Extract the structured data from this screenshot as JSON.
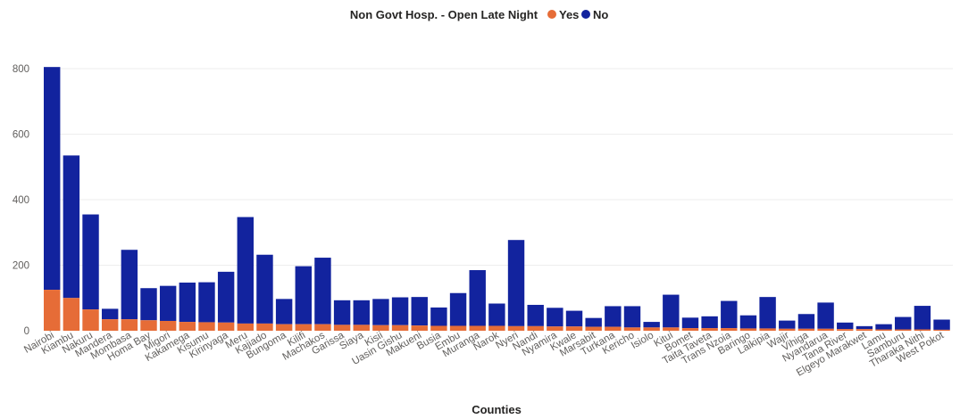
{
  "chart_data": {
    "type": "bar",
    "stacked": true,
    "title": "Non Govt Hosp. - Open Late Night",
    "xlabel": "Counties",
    "ylabel": "",
    "ylim": [
      0,
      800
    ],
    "yticks": [
      0,
      200,
      400,
      600,
      800
    ],
    "grid": true,
    "legend": {
      "placement": "top",
      "entries": [
        "Yes",
        "No"
      ]
    },
    "colors": {
      "Yes": "#e66c37",
      "No": "#12239e"
    },
    "categories": [
      "Nairobi",
      "Kiambu",
      "Nakuru",
      "Mandera",
      "Mombasa",
      "Homa Bay",
      "Migori",
      "Kakamega",
      "Kisumu",
      "Kirinyaga",
      "Meru",
      "Kajiado",
      "Bungoma",
      "Kilifi",
      "Machakos",
      "Garissa",
      "Siaya",
      "Kisii",
      "Uasin Gishu",
      "Makueni",
      "Busia",
      "Embu",
      "Muranga",
      "Narok",
      "Nyeri",
      "Nandi",
      "Nyamira",
      "Kwale",
      "Marsabit",
      "Turkana",
      "Kericho",
      "Isiolo",
      "Kitui",
      "Bomet",
      "Taita Taveta",
      "Trans Nzoia",
      "Baringo",
      "Laikipia",
      "Wajir",
      "Vihiga",
      "Nyandarua",
      "Tana River",
      "Elgeyo Marakwet",
      "Lamu",
      "Samburu",
      "Tharaka Nithi",
      "West Pokot"
    ],
    "series": [
      {
        "name": "Yes",
        "values": [
          125,
          100,
          65,
          35,
          35,
          32,
          30,
          27,
          26,
          25,
          22,
          22,
          20,
          20,
          20,
          18,
          18,
          17,
          17,
          16,
          15,
          15,
          15,
          15,
          14,
          14,
          13,
          13,
          12,
          12,
          10,
          10,
          10,
          8,
          8,
          8,
          7,
          7,
          6,
          6,
          6,
          5,
          5,
          4,
          4,
          4,
          3
        ]
      },
      {
        "name": "No",
        "values": [
          680,
          435,
          290,
          32,
          212,
          98,
          107,
          120,
          122,
          155,
          325,
          210,
          77,
          177,
          203,
          75,
          75,
          80,
          85,
          87,
          56,
          100,
          170,
          68,
          263,
          65,
          57,
          48,
          27,
          63,
          65,
          17,
          100,
          32,
          36,
          83,
          40,
          96,
          25,
          45,
          80,
          20,
          9,
          16,
          38,
          72,
          31
        ]
      }
    ]
  }
}
